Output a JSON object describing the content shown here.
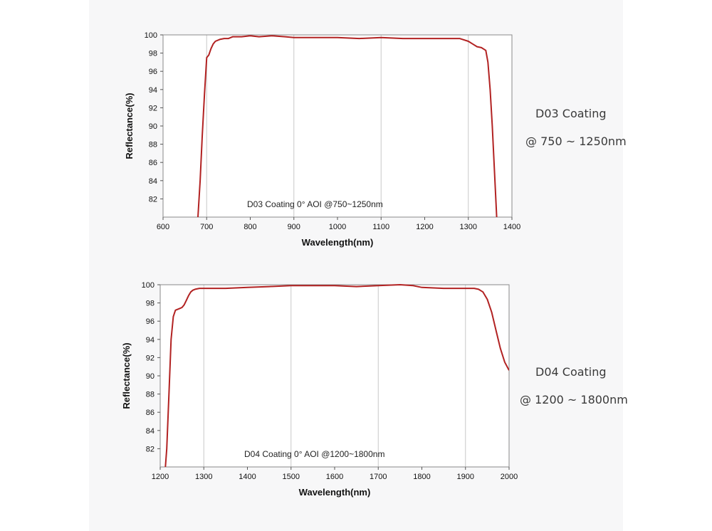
{
  "chart_data": [
    {
      "type": "line",
      "annotation": "D03 Coating  0°  AOI @750~1250nm",
      "xlabel": "Wavelength(nm)",
      "ylabel": "Reflectance(%)",
      "xlim": [
        600,
        1400
      ],
      "ylim": [
        80,
        100
      ],
      "xticks": [
        600,
        700,
        800,
        900,
        1000,
        1100,
        1200,
        1300,
        1400
      ],
      "yticks": [
        82,
        84,
        86,
        88,
        90,
        92,
        94,
        96,
        98,
        100
      ],
      "grid": "vertical",
      "series": [
        {
          "color": "#b22222",
          "x": [
            680,
            685,
            690,
            695,
            700,
            705,
            710,
            715,
            720,
            730,
            740,
            750,
            760,
            780,
            800,
            820,
            850,
            880,
            900,
            950,
            1000,
            1050,
            1100,
            1150,
            1200,
            1250,
            1280,
            1300,
            1310,
            1320,
            1330,
            1340,
            1345,
            1350,
            1355,
            1360,
            1365
          ],
          "y": [
            80,
            84,
            89,
            93.5,
            97.5,
            97.8,
            98.5,
            99.0,
            99.3,
            99.5,
            99.6,
            99.6,
            99.8,
            99.8,
            99.9,
            99.8,
            99.9,
            99.8,
            99.7,
            99.7,
            99.7,
            99.6,
            99.7,
            99.6,
            99.6,
            99.6,
            99.6,
            99.3,
            99.0,
            98.7,
            98.6,
            98.3,
            97.0,
            94.0,
            90.0,
            85.0,
            80.0
          ]
        }
      ]
    },
    {
      "type": "line",
      "annotation": "D04 Coating  0°  AOI @1200~1800nm",
      "xlabel": "Wavelength(nm)",
      "ylabel": "Reflectance(%)",
      "xlim": [
        1200,
        2000
      ],
      "ylim": [
        80,
        100
      ],
      "xticks": [
        1200,
        1300,
        1400,
        1500,
        1600,
        1700,
        1800,
        1900,
        2000
      ],
      "yticks": [
        82,
        84,
        86,
        88,
        90,
        92,
        94,
        96,
        98,
        100
      ],
      "grid": "vertical",
      "series": [
        {
          "color": "#b22222",
          "x": [
            1212,
            1215,
            1220,
            1225,
            1230,
            1235,
            1240,
            1245,
            1250,
            1255,
            1260,
            1265,
            1270,
            1275,
            1280,
            1290,
            1300,
            1350,
            1400,
            1450,
            1500,
            1550,
            1600,
            1650,
            1700,
            1750,
            1780,
            1800,
            1850,
            1880,
            1900,
            1920,
            1930,
            1940,
            1950,
            1960,
            1970,
            1980,
            1990,
            2000
          ],
          "y": [
            80,
            82,
            88,
            94,
            96.5,
            97.2,
            97.3,
            97.4,
            97.5,
            97.8,
            98.3,
            98.8,
            99.2,
            99.4,
            99.5,
            99.6,
            99.6,
            99.6,
            99.7,
            99.8,
            99.9,
            99.9,
            99.9,
            99.8,
            99.9,
            100.0,
            99.9,
            99.7,
            99.6,
            99.6,
            99.6,
            99.6,
            99.5,
            99.2,
            98.4,
            97.0,
            95.0,
            93.0,
            91.5,
            90.6
          ]
        }
      ]
    }
  ],
  "side_labels": [
    {
      "line1": "D03 Coating",
      "line2": "@ 750 ~ 1250nm"
    },
    {
      "line1": "D04 Coating",
      "line2": "@ 1200 ~ 1800nm"
    }
  ]
}
